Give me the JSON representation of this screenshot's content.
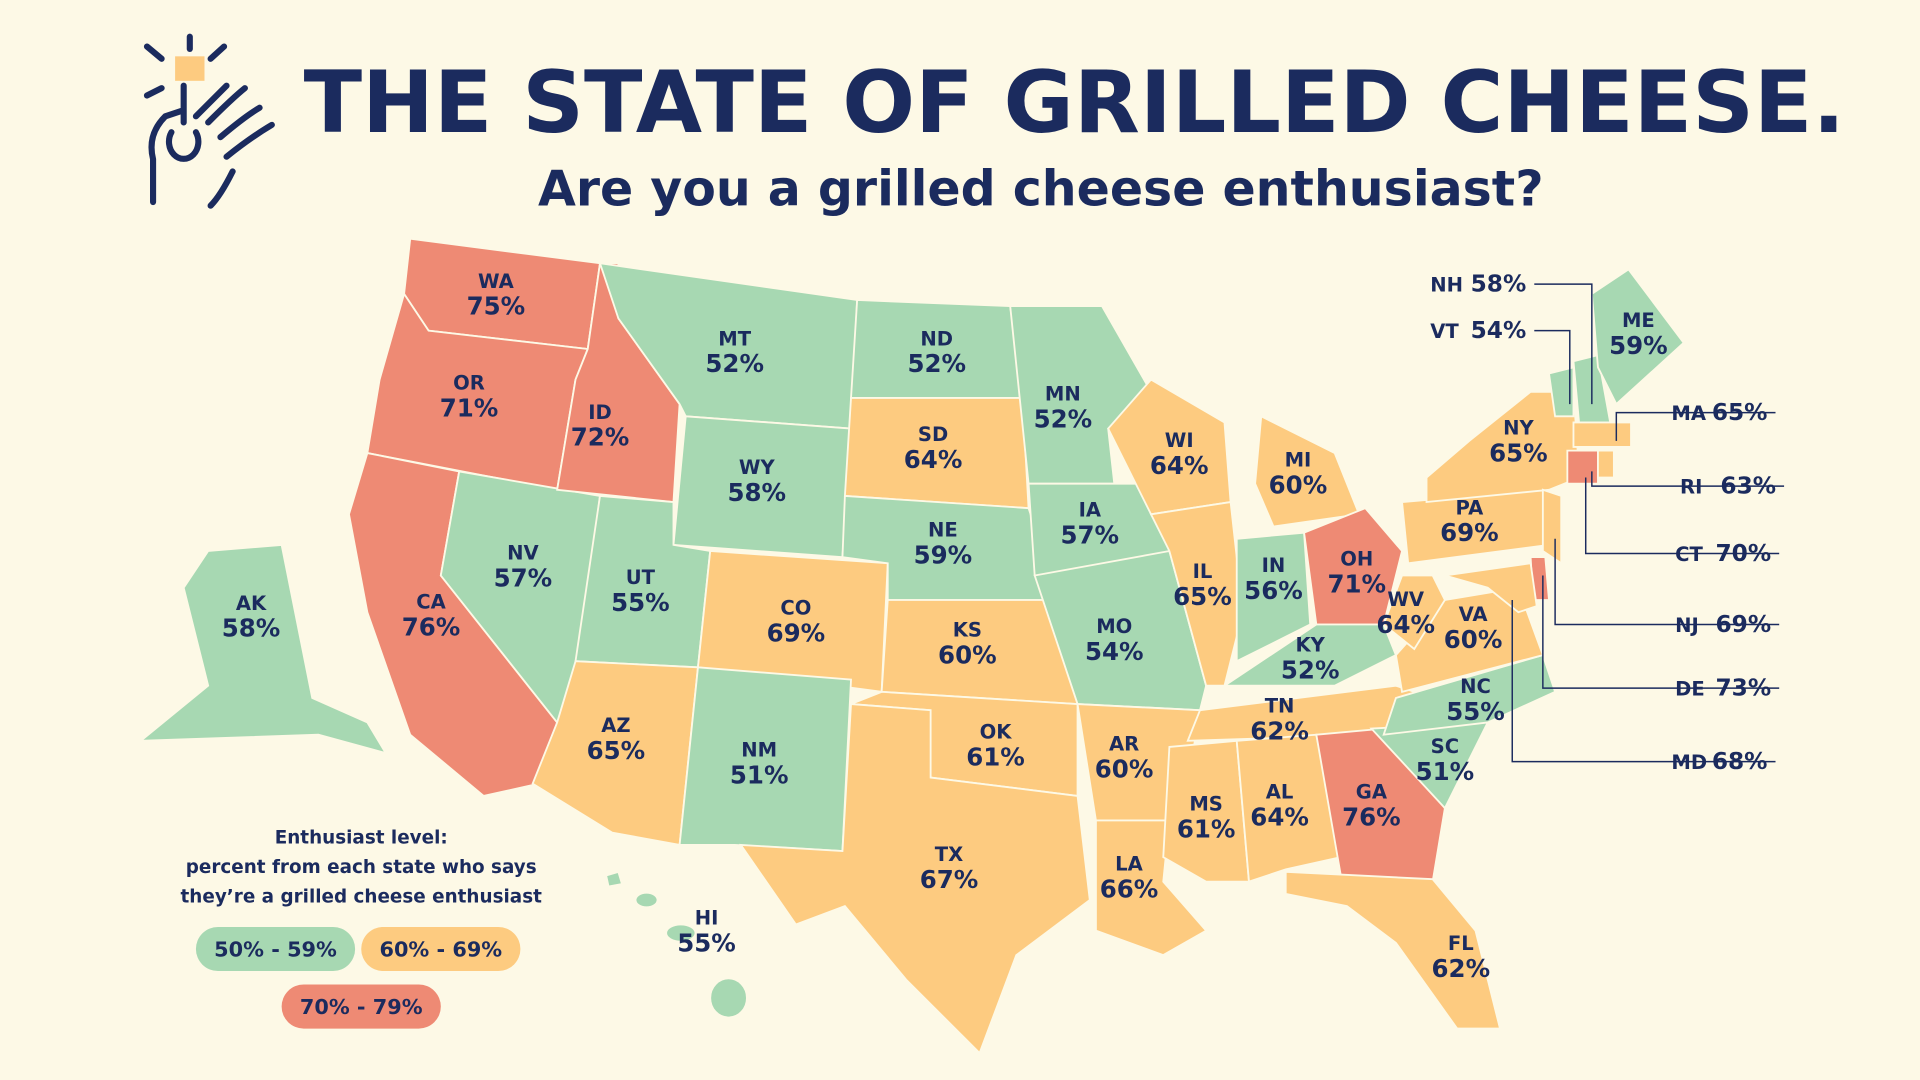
{
  "header": {
    "title": "THE STATE OF GRILLED CHEESE.",
    "subtitle": "Are you a grilled cheese enthusiast?"
  },
  "legend": {
    "title": "Enthusiast level:",
    "description": [
      "percent from each state who says",
      "they’re a grilled cheese enthusiast"
    ],
    "levels": [
      {
        "label": "50% - 59%",
        "min": 50,
        "max": 59,
        "color": "#a7d8b2"
      },
      {
        "label": "60% - 69%",
        "min": 60,
        "max": 69,
        "color": "#fdcb80"
      },
      {
        "label": "70% - 79%",
        "min": 70,
        "max": 79,
        "color": "#ee8a74"
      }
    ]
  },
  "states": [
    {
      "abbr": "WA",
      "value": 75,
      "value_label": "75%"
    },
    {
      "abbr": "OR",
      "value": 71,
      "value_label": "71%"
    },
    {
      "abbr": "CA",
      "value": 76,
      "value_label": "76%"
    },
    {
      "abbr": "NV",
      "value": 57,
      "value_label": "57%"
    },
    {
      "abbr": "ID",
      "value": 72,
      "value_label": "72%"
    },
    {
      "abbr": "MT",
      "value": 52,
      "value_label": "52%"
    },
    {
      "abbr": "WY",
      "value": 58,
      "value_label": "58%"
    },
    {
      "abbr": "UT",
      "value": 55,
      "value_label": "55%"
    },
    {
      "abbr": "AZ",
      "value": 65,
      "value_label": "65%"
    },
    {
      "abbr": "CO",
      "value": 69,
      "value_label": "69%"
    },
    {
      "abbr": "NM",
      "value": 51,
      "value_label": "51%"
    },
    {
      "abbr": "ND",
      "value": 52,
      "value_label": "52%"
    },
    {
      "abbr": "SD",
      "value": 64,
      "value_label": "64%"
    },
    {
      "abbr": "NE",
      "value": 59,
      "value_label": "59%"
    },
    {
      "abbr": "KS",
      "value": 60,
      "value_label": "60%"
    },
    {
      "abbr": "OK",
      "value": 61,
      "value_label": "61%"
    },
    {
      "abbr": "TX",
      "value": 67,
      "value_label": "67%"
    },
    {
      "abbr": "MN",
      "value": 52,
      "value_label": "52%"
    },
    {
      "abbr": "IA",
      "value": 57,
      "value_label": "57%"
    },
    {
      "abbr": "MO",
      "value": 54,
      "value_label": "54%"
    },
    {
      "abbr": "AR",
      "value": 60,
      "value_label": "60%"
    },
    {
      "abbr": "LA",
      "value": 66,
      "value_label": "66%"
    },
    {
      "abbr": "WI",
      "value": 64,
      "value_label": "64%"
    },
    {
      "abbr": "IL",
      "value": 65,
      "value_label": "65%"
    },
    {
      "abbr": "MI",
      "value": 60,
      "value_label": "60%"
    },
    {
      "abbr": "IN",
      "value": 56,
      "value_label": "56%"
    },
    {
      "abbr": "OH",
      "value": 71,
      "value_label": "71%"
    },
    {
      "abbr": "KY",
      "value": 52,
      "value_label": "52%"
    },
    {
      "abbr": "TN",
      "value": 62,
      "value_label": "62%"
    },
    {
      "abbr": "MS",
      "value": 61,
      "value_label": "61%"
    },
    {
      "abbr": "AL",
      "value": 64,
      "value_label": "64%"
    },
    {
      "abbr": "GA",
      "value": 76,
      "value_label": "76%"
    },
    {
      "abbr": "FL",
      "value": 62,
      "value_label": "62%"
    },
    {
      "abbr": "SC",
      "value": 51,
      "value_label": "51%"
    },
    {
      "abbr": "NC",
      "value": 55,
      "value_label": "55%"
    },
    {
      "abbr": "VA",
      "value": 60,
      "value_label": "60%"
    },
    {
      "abbr": "WV",
      "value": 64,
      "value_label": "64%"
    },
    {
      "abbr": "PA",
      "value": 69,
      "value_label": "69%"
    },
    {
      "abbr": "NY",
      "value": 65,
      "value_label": "65%"
    },
    {
      "abbr": "VT",
      "value": 54,
      "value_label": "54%"
    },
    {
      "abbr": "NH",
      "value": 58,
      "value_label": "58%"
    },
    {
      "abbr": "ME",
      "value": 59,
      "value_label": "59%"
    },
    {
      "abbr": "MA",
      "value": 65,
      "value_label": "65%"
    },
    {
      "abbr": "CT",
      "value": 70,
      "value_label": "70%"
    },
    {
      "abbr": "RI",
      "value": 63,
      "value_label": "63%"
    },
    {
      "abbr": "NJ",
      "value": 69,
      "value_label": "69%"
    },
    {
      "abbr": "DE",
      "value": 73,
      "value_label": "73%"
    },
    {
      "abbr": "MD",
      "value": 68,
      "value_label": "68%"
    },
    {
      "abbr": "AK",
      "value": 58,
      "value_label": "58%"
    },
    {
      "abbr": "HI",
      "value": 55,
      "value_label": "55%"
    }
  ]
}
